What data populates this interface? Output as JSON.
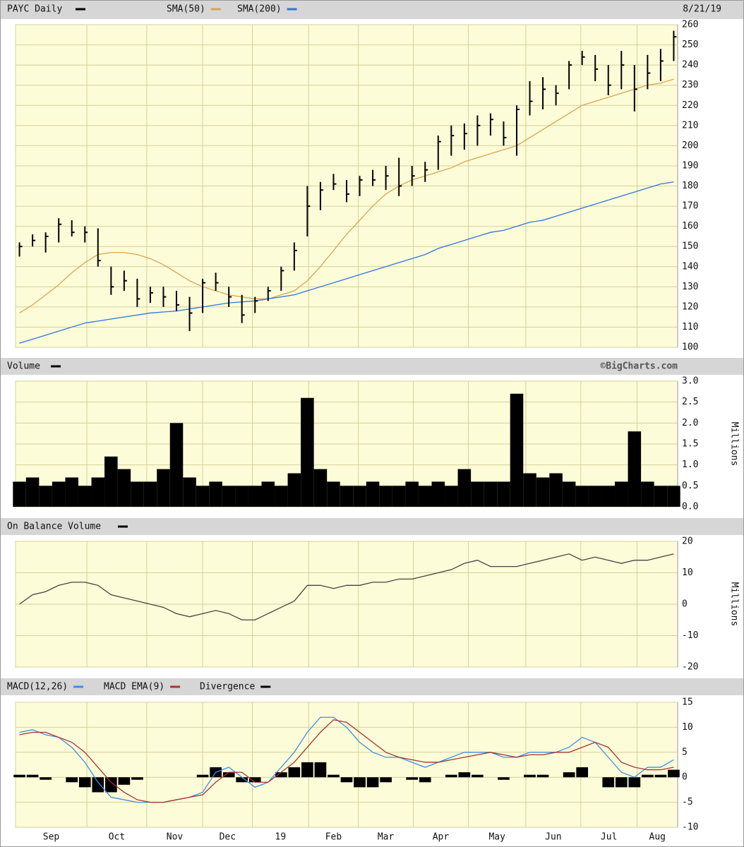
{
  "chart_data": [
    {
      "type": "ohlc",
      "title": "PAYC Daily",
      "date": "8/21/19",
      "color": "#000000",
      "high": [
        152,
        156,
        157,
        164,
        163,
        160,
        159,
        140,
        138,
        134,
        130,
        130,
        128,
        125,
        134,
        137,
        130,
        126,
        125,
        130,
        140,
        152,
        180,
        182,
        186,
        183,
        185,
        188,
        190,
        194,
        190,
        192,
        205,
        210,
        211,
        215,
        216,
        212,
        220,
        232,
        234,
        230,
        242,
        247,
        245,
        240,
        247,
        240,
        245,
        248,
        257
      ],
      "low": [
        145,
        150,
        147,
        152,
        155,
        152,
        140,
        126,
        128,
        120,
        122,
        120,
        118,
        108,
        117,
        128,
        120,
        112,
        117,
        123,
        128,
        138,
        155,
        168,
        178,
        172,
        175,
        180,
        178,
        175,
        180,
        182,
        188,
        195,
        198,
        200,
        205,
        200,
        195,
        215,
        218,
        220,
        228,
        240,
        232,
        225,
        228,
        217,
        228,
        232,
        242
      ],
      "close": [
        150,
        153,
        155,
        161,
        157,
        157,
        143,
        130,
        133,
        124,
        127,
        125,
        121,
        117,
        132,
        132,
        125,
        116,
        123,
        128,
        138,
        148,
        170,
        178,
        181,
        176,
        183,
        183,
        185,
        180,
        185,
        188,
        202,
        205,
        206,
        210,
        213,
        204,
        218,
        222,
        228,
        226,
        240,
        244,
        238,
        230,
        240,
        228,
        236,
        242,
        254
      ],
      "series": [
        {
          "name": "SMA(50)",
          "color": "#d9a550",
          "values": [
            117,
            121,
            126,
            131,
            137,
            142,
            146,
            147,
            147,
            146,
            144,
            141,
            137,
            133,
            130,
            128,
            126,
            125,
            124,
            124,
            126,
            128,
            133,
            140,
            148,
            156,
            163,
            170,
            176,
            180,
            183,
            185,
            187,
            189,
            192,
            194,
            196,
            198,
            200,
            204,
            208,
            212,
            216,
            220,
            222,
            224,
            226,
            228,
            230,
            231,
            233
          ]
        },
        {
          "name": "SMA(200)",
          "color": "#2f74e0",
          "values": [
            102,
            104,
            106,
            108,
            110,
            112,
            113,
            114,
            115,
            116,
            117,
            117.5,
            118,
            119,
            120,
            121,
            122,
            122.5,
            123,
            124,
            125,
            126,
            128,
            130,
            132,
            134,
            136,
            138,
            140,
            142,
            144,
            146,
            149,
            151,
            153,
            155,
            157,
            158,
            160,
            162,
            163,
            165,
            167,
            169,
            171,
            173,
            175,
            177,
            179,
            181,
            182
          ]
        }
      ],
      "ylim": [
        100,
        260
      ],
      "yticks": [
        100,
        110,
        120,
        130,
        140,
        150,
        160,
        170,
        180,
        190,
        200,
        210,
        220,
        230,
        240,
        250,
        260
      ],
      "grid": true
    },
    {
      "type": "bar",
      "title": "Volume",
      "source": "©BigCharts.com",
      "color": "#000000",
      "y_label": "Millions",
      "values": [
        0.6,
        0.7,
        0.5,
        0.6,
        0.7,
        0.5,
        0.7,
        1.2,
        0.9,
        0.6,
        0.6,
        0.9,
        2.0,
        0.7,
        0.5,
        0.6,
        0.5,
        0.5,
        0.5,
        0.6,
        0.5,
        0.8,
        2.6,
        0.9,
        0.6,
        0.5,
        0.5,
        0.6,
        0.5,
        0.5,
        0.6,
        0.5,
        0.6,
        0.5,
        0.9,
        0.6,
        0.6,
        0.6,
        2.7,
        0.8,
        0.7,
        0.8,
        0.6,
        0.5,
        0.5,
        0.5,
        0.6,
        1.8,
        0.6,
        0.5,
        0.5
      ],
      "ylim": [
        0,
        3
      ],
      "yticks": [
        {
          "value": 0,
          "label": "0.0"
        },
        0.5,
        {
          "value": 1,
          "label": "1.0"
        },
        1.5,
        {
          "value": 2,
          "label": "2.0"
        },
        2.5,
        {
          "value": 3,
          "label": "3.0"
        }
      ],
      "grid": true
    },
    {
      "type": "line",
      "title": "On Balance Volume",
      "color": "#444444",
      "y_label": "Millions",
      "values": [
        0,
        3,
        4,
        6,
        7,
        7,
        6,
        3,
        2,
        1,
        0,
        -1,
        -3,
        -4,
        -3,
        -2,
        -3,
        -5,
        -5,
        -3,
        -1,
        1,
        6,
        6,
        5,
        6,
        6,
        7,
        7,
        8,
        8,
        9,
        10,
        11,
        13,
        14,
        12,
        12,
        12,
        13,
        14,
        15,
        16,
        14,
        15,
        14,
        13,
        14,
        14,
        15,
        16
      ],
      "ylim": [
        -20,
        20
      ],
      "yticks": [
        -20,
        -10,
        0,
        10,
        20
      ],
      "grid": true
    },
    {
      "type": "macd",
      "grid": true,
      "series": [
        {
          "name": "MACD(12,26)",
          "color": "#3a8ee6",
          "values": [
            9,
            9.5,
            8.5,
            8,
            6,
            3,
            -1,
            -4,
            -4.5,
            -5,
            -5,
            -5,
            -4.5,
            -4,
            -3,
            1,
            2,
            0,
            -2,
            -1,
            2,
            5,
            9,
            12,
            12,
            10,
            7,
            5,
            4,
            4,
            3,
            2,
            3,
            4,
            5,
            5,
            5,
            4,
            4,
            5,
            5,
            5,
            6,
            8,
            7,
            4,
            1,
            0,
            2,
            2,
            3.5
          ]
        },
        {
          "name": "MACD EMA(9)",
          "color": "#a83232",
          "values": [
            8.5,
            9,
            9,
            8,
            7,
            5,
            2,
            -1,
            -3,
            -4.5,
            -5,
            -5,
            -4.5,
            -4,
            -3.5,
            -1,
            1,
            1,
            -1,
            -1,
            1,
            3,
            6,
            9,
            11.5,
            11,
            9,
            7,
            5,
            4,
            3.5,
            3,
            3,
            3.5,
            4,
            4.5,
            5,
            4.5,
            4,
            4.5,
            4.5,
            5,
            5,
            6,
            7,
            6,
            3,
            2,
            1.5,
            1.5,
            2
          ]
        },
        {
          "name": "Divergence",
          "color": "#000000",
          "values": [
            0.5,
            0.5,
            -0.5,
            0,
            -1,
            -2,
            -3,
            -3,
            -1.5,
            -0.5,
            0,
            0,
            0,
            0,
            0.5,
            2,
            1,
            -1,
            -1,
            0,
            1,
            2,
            3,
            3,
            0.5,
            -1,
            -2,
            -2,
            -1,
            0,
            -0.5,
            -1,
            0,
            0.5,
            1,
            0.5,
            0,
            -0.5,
            0,
            0.5,
            0.5,
            0,
            1,
            2,
            0,
            -2,
            -2,
            -2,
            0.5,
            0.5,
            1.5
          ]
        }
      ],
      "ylim": [
        -10,
        15
      ],
      "yticks": [
        -10,
        -5,
        0,
        5,
        10,
        15
      ],
      "x": [
        0,
        1,
        2,
        3,
        4,
        5,
        6,
        7,
        8,
        9,
        10,
        11,
        12,
        13,
        14,
        15,
        16,
        17,
        18,
        19,
        20,
        21,
        22,
        23,
        24,
        25,
        26,
        27,
        28,
        29,
        30,
        31,
        32,
        33,
        34,
        35,
        36,
        37,
        38,
        39,
        40,
        41,
        42,
        43,
        44,
        45,
        46,
        47,
        48,
        49,
        50
      ],
      "xlim": [
        -0.3,
        50.3
      ],
      "xticks": [
        {
          "value": -0.3,
          "label": "Sep"
        },
        {
          "value": 5.15,
          "label": "Oct"
        },
        {
          "value": 9.73,
          "label": "Nov"
        },
        {
          "value": 14.0,
          "label": "Dec"
        },
        {
          "value": 17.8,
          "label": "19"
        },
        {
          "value": 22.1,
          "label": "Feb"
        },
        {
          "value": 25.9,
          "label": "Mar"
        },
        {
          "value": 30.1,
          "label": "Apr"
        },
        {
          "value": 34.3,
          "label": "May"
        },
        {
          "value": 38.7,
          "label": "Jun"
        },
        {
          "value": 42.9,
          "label": "Jul"
        },
        {
          "value": 47.2,
          "label": "Aug"
        }
      ]
    }
  ]
}
